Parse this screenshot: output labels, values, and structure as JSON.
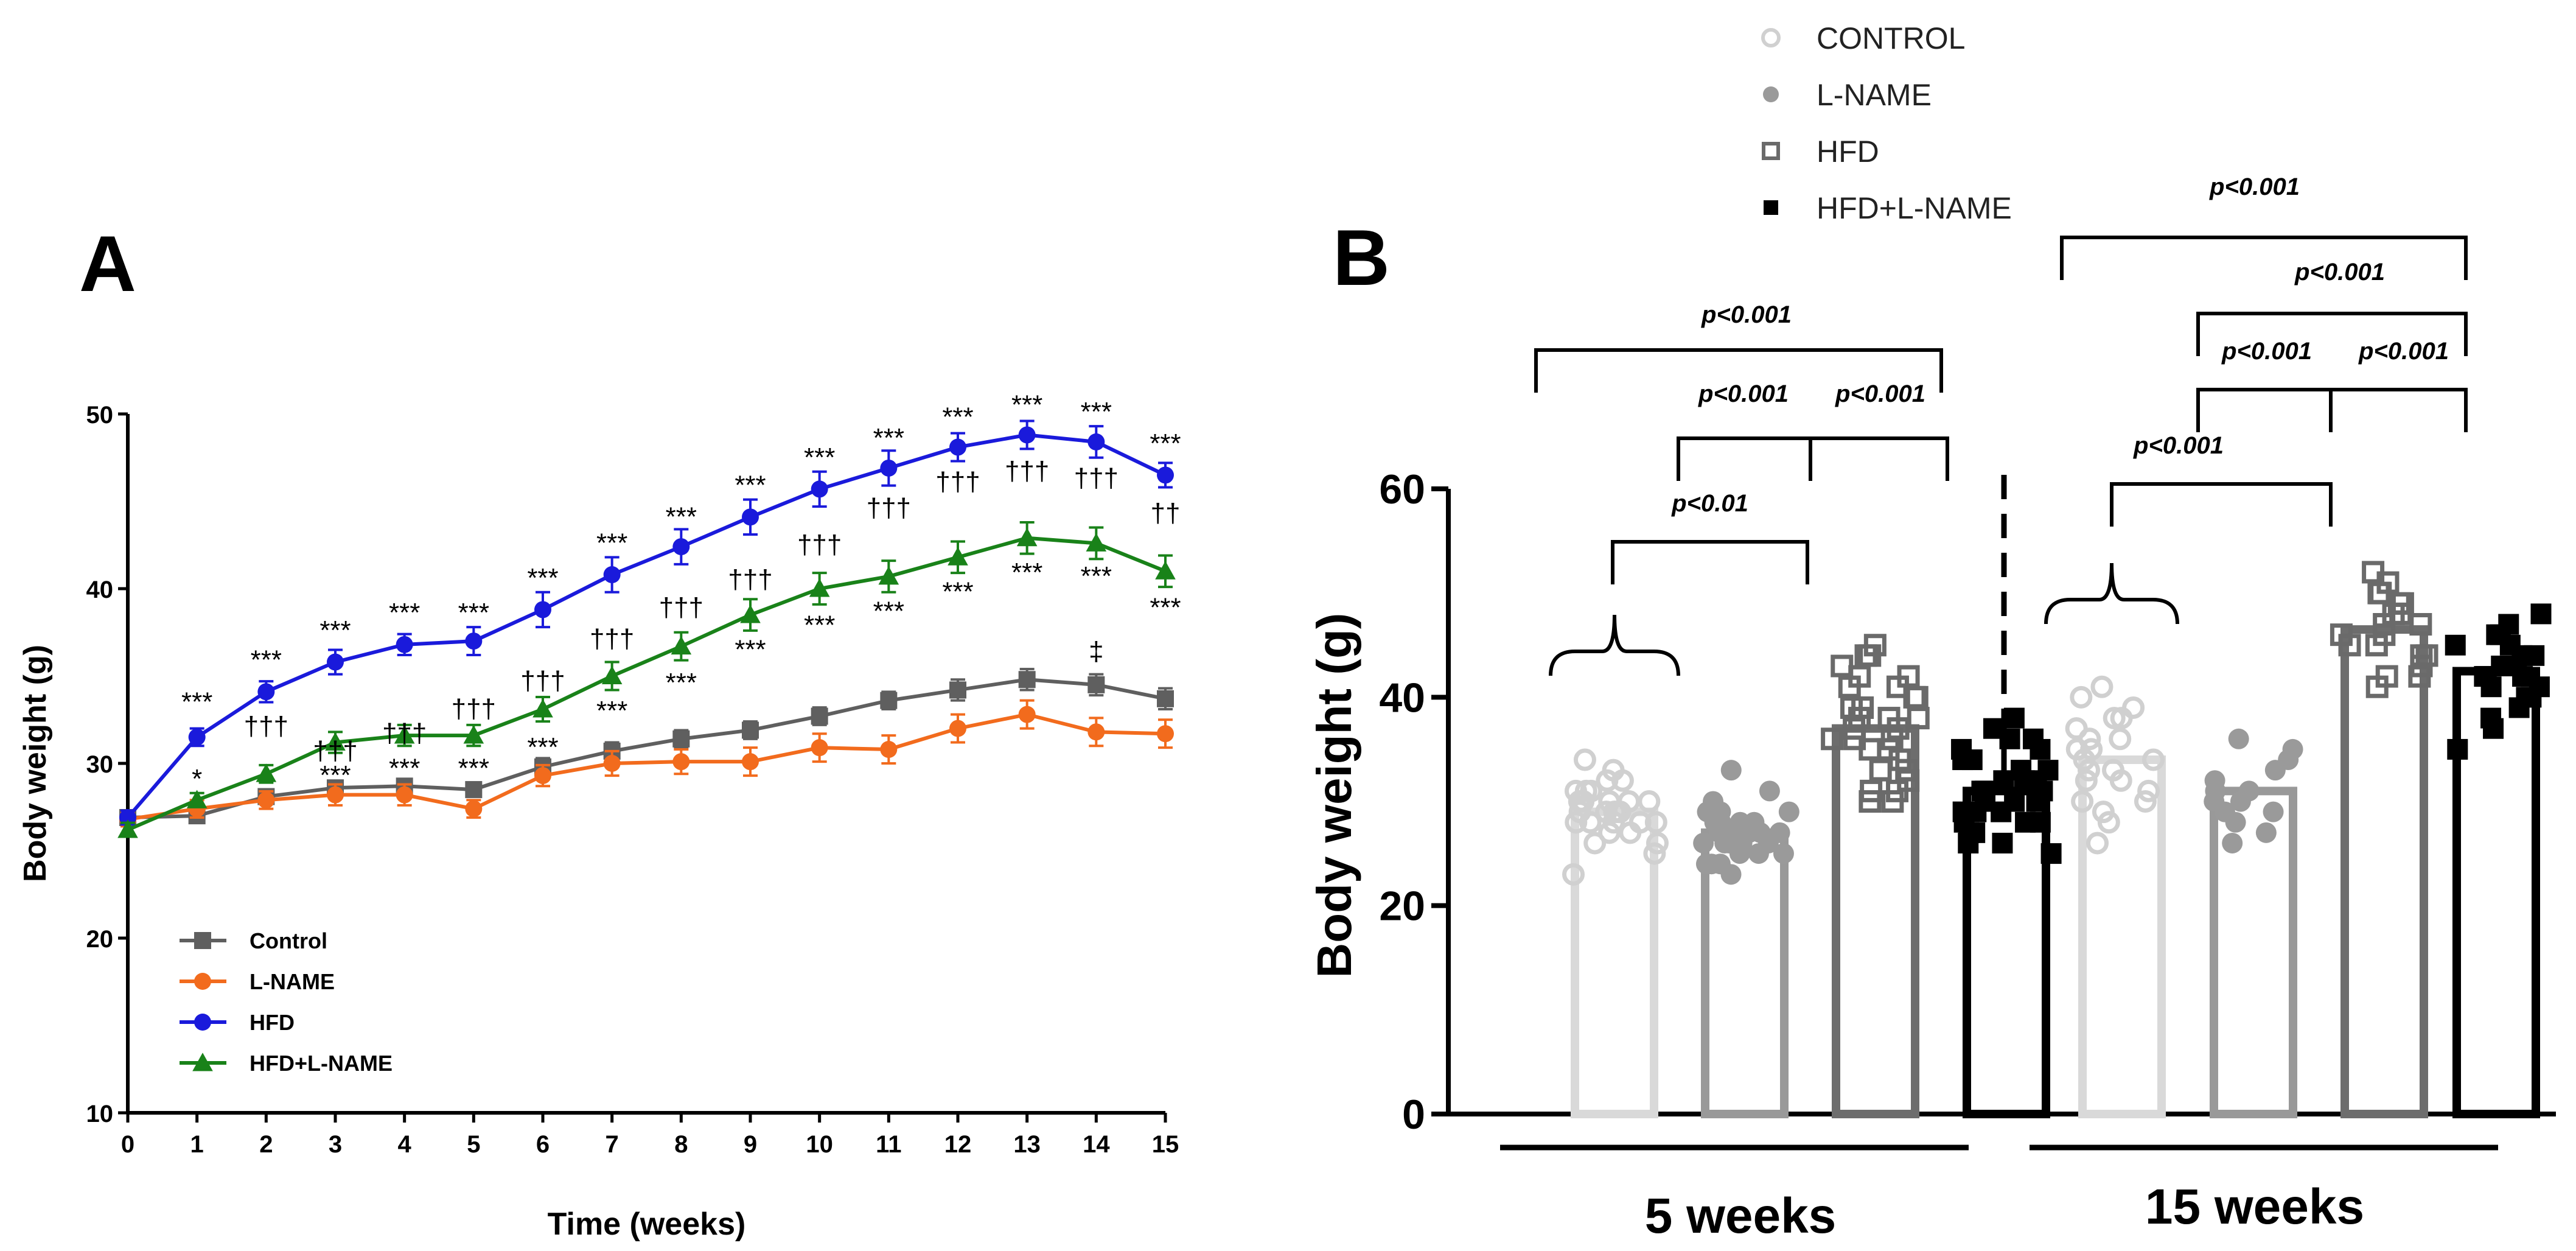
{
  "chart_data": [
    {
      "panel": "A",
      "type": "line",
      "xlabel": "Time (weeks)",
      "ylabel": "Body weight (g)",
      "xlim": [
        0,
        15
      ],
      "ylim": [
        10,
        50
      ],
      "x_ticks": [
        0,
        1,
        2,
        3,
        4,
        5,
        6,
        7,
        8,
        9,
        10,
        11,
        12,
        13,
        14,
        15
      ],
      "y_ticks": [
        10,
        20,
        30,
        40,
        50
      ],
      "legend_position": "bottom-left",
      "series": [
        {
          "name": "Control",
          "marker": "square",
          "color": "#5f5f5f",
          "values": [
            26.9,
            27.0,
            28.1,
            28.6,
            28.7,
            28.5,
            29.8,
            30.7,
            31.4,
            31.9,
            32.7,
            33.6,
            34.2,
            34.8,
            34.5,
            33.7
          ],
          "errors": [
            0.4,
            0.4,
            0.4,
            0.4,
            0.4,
            0.4,
            0.5,
            0.5,
            0.5,
            0.5,
            0.5,
            0.5,
            0.6,
            0.6,
            0.6,
            0.6
          ]
        },
        {
          "name": "L-NAME",
          "marker": "circle",
          "color": "#f26b1d",
          "values": [
            26.8,
            27.4,
            27.9,
            28.2,
            28.2,
            27.4,
            29.3,
            30.0,
            30.1,
            30.1,
            30.9,
            30.8,
            32.0,
            32.8,
            31.8,
            31.7
          ],
          "errors": [
            0.4,
            0.5,
            0.5,
            0.6,
            0.6,
            0.5,
            0.6,
            0.7,
            0.7,
            0.8,
            0.8,
            0.8,
            0.8,
            0.8,
            0.8,
            0.8
          ]
        },
        {
          "name": "HFD",
          "marker": "circle",
          "color": "#1a1adb",
          "values": [
            26.9,
            31.5,
            34.1,
            35.8,
            36.8,
            37.0,
            38.8,
            40.8,
            42.4,
            44.1,
            45.7,
            46.9,
            48.1,
            48.8,
            48.4,
            46.5
          ],
          "errors": [
            0.4,
            0.5,
            0.6,
            0.7,
            0.6,
            0.8,
            1.0,
            1.0,
            1.0,
            1.0,
            1.0,
            1.0,
            0.8,
            0.8,
            0.9,
            0.7
          ]
        },
        {
          "name": "HFD+L-NAME",
          "marker": "triangle",
          "color": "#198219",
          "values": [
            26.2,
            27.9,
            29.4,
            31.2,
            31.6,
            31.6,
            33.1,
            35.0,
            36.7,
            38.5,
            40.0,
            40.7,
            41.8,
            42.9,
            42.6,
            41.0
          ],
          "errors": [
            0.4,
            0.4,
            0.5,
            0.6,
            0.6,
            0.6,
            0.7,
            0.8,
            0.8,
            0.9,
            0.9,
            0.9,
            0.9,
            0.9,
            0.9,
            0.9
          ]
        }
      ],
      "annotations": [
        {
          "x": 1,
          "y": 33.5,
          "text": "***"
        },
        {
          "x": 2,
          "y": 35.9,
          "text": "***"
        },
        {
          "x": 3,
          "y": 37.6,
          "text": "***"
        },
        {
          "x": 4,
          "y": 38.6,
          "text": "***"
        },
        {
          "x": 5,
          "y": 38.6,
          "text": "***"
        },
        {
          "x": 6,
          "y": 40.6,
          "text": "***"
        },
        {
          "x": 7,
          "y": 42.6,
          "text": "***"
        },
        {
          "x": 8,
          "y": 44.1,
          "text": "***"
        },
        {
          "x": 9,
          "y": 45.9,
          "text": "***"
        },
        {
          "x": 10,
          "y": 47.5,
          "text": "***"
        },
        {
          "x": 11,
          "y": 48.6,
          "text": "***"
        },
        {
          "x": 12,
          "y": 49.8,
          "text": "***"
        },
        {
          "x": 13,
          "y": 50.5,
          "text": "***"
        },
        {
          "x": 14,
          "y": 50.1,
          "text": "***"
        },
        {
          "x": 15,
          "y": 48.3,
          "text": "***"
        },
        {
          "x": 1,
          "y": 29.1,
          "text": "*"
        },
        {
          "x": 2,
          "y": 32.1,
          "text": "†††"
        },
        {
          "x": 3,
          "y": 30.7,
          "text": "†††"
        },
        {
          "x": 3,
          "y": 29.3,
          "text": "***"
        },
        {
          "x": 4,
          "y": 31.7,
          "text": "†††"
        },
        {
          "x": 4,
          "y": 29.7,
          "text": "***"
        },
        {
          "x": 5,
          "y": 33.1,
          "text": "†††"
        },
        {
          "x": 5,
          "y": 29.7,
          "text": "***"
        },
        {
          "x": 6,
          "y": 34.7,
          "text": "†††"
        },
        {
          "x": 6,
          "y": 30.9,
          "text": "***"
        },
        {
          "x": 7,
          "y": 37.1,
          "text": "†††"
        },
        {
          "x": 7,
          "y": 33.0,
          "text": "***"
        },
        {
          "x": 8,
          "y": 38.9,
          "text": "†††"
        },
        {
          "x": 8,
          "y": 34.6,
          "text": "***"
        },
        {
          "x": 9,
          "y": 40.5,
          "text": "†††"
        },
        {
          "x": 9,
          "y": 36.5,
          "text": "***"
        },
        {
          "x": 10,
          "y": 42.5,
          "text": "†††"
        },
        {
          "x": 10,
          "y": 37.9,
          "text": "***"
        },
        {
          "x": 11,
          "y": 44.6,
          "text": "†††"
        },
        {
          "x": 11,
          "y": 38.7,
          "text": "***"
        },
        {
          "x": 12,
          "y": 46.1,
          "text": "†††"
        },
        {
          "x": 12,
          "y": 39.8,
          "text": "***"
        },
        {
          "x": 13,
          "y": 46.7,
          "text": "†††"
        },
        {
          "x": 13,
          "y": 40.9,
          "text": "***"
        },
        {
          "x": 14,
          "y": 46.3,
          "text": "†††"
        },
        {
          "x": 14,
          "y": 40.7,
          "text": "***"
        },
        {
          "x": 14,
          "y": 36.4,
          "text": "‡"
        },
        {
          "x": 15,
          "y": 44.3,
          "text": "††"
        },
        {
          "x": 15,
          "y": 38.9,
          "text": "***"
        }
      ]
    },
    {
      "panel": "B",
      "type": "bar",
      "ylabel": "Body weight (g)",
      "ylim": [
        0,
        60
      ],
      "y_ticks": [
        0,
        20,
        40,
        60
      ],
      "legend_position": "top",
      "legend": [
        "CONTROL",
        "L-NAME",
        "HFD",
        "HFD+L-NAME"
      ],
      "groups": [
        {
          "label": "5 weeks",
          "bars": [
            {
              "series": "CONTROL",
              "mean": 29.0,
              "points": [
                28,
                29,
                30,
                31,
                27,
                29,
                28,
                30,
                32,
                29,
                26,
                28,
                30,
                31,
                29,
                28,
                27,
                30,
                29,
                33,
                34,
                23,
                25,
                26,
                29,
                30,
                28,
                31,
                32,
                29
              ]
            },
            {
              "series": "L-NAME",
              "mean": 27.0,
              "points": [
                27,
                26,
                28,
                29,
                25,
                24,
                27,
                26,
                30,
                31,
                33,
                23,
                24,
                25,
                28,
                27,
                26,
                29,
                28,
                27,
                26,
                25,
                24,
                27,
                28,
                29,
                26,
                27
              ]
            },
            {
              "series": "HFD",
              "mean": 37.0,
              "points": [
                36,
                38,
                40,
                42,
                44,
                45,
                35,
                33,
                31,
                30,
                37,
                39,
                41,
                43,
                36,
                34,
                32,
                38,
                40,
                42,
                37,
                35,
                33,
                36,
                38,
                39,
                41,
                44,
                30,
                31
              ]
            },
            {
              "series": "HFD+L-NAME",
              "mean": 31.0,
              "points": [
                31,
                33,
                35,
                37,
                38,
                29,
                27,
                25,
                26,
                28,
                30,
                32,
                34,
                36,
                31,
                30,
                29,
                27,
                28,
                32,
                33,
                35,
                31,
                30,
                29,
                28,
                26,
                34,
                36,
                32
              ]
            }
          ]
        },
        {
          "label": "15 weeks",
          "bars": [
            {
              "series": "CONTROL",
              "mean": 34.0,
              "points": [
                34,
                36,
                38,
                40,
                41,
                32,
                30,
                28,
                26,
                29,
                31,
                33,
                35,
                37,
                39,
                34,
                33,
                32,
                36,
                38,
                35,
                30
              ]
            },
            {
              "series": "L-NAME",
              "mean": 31.0,
              "points": [
                31,
                33,
                36,
                35,
                29,
                27,
                26,
                30,
                32,
                34,
                31,
                30,
                29,
                28
              ]
            },
            {
              "series": "HFD",
              "mean": 46.5,
              "points": [
                46,
                48,
                50,
                52,
                51,
                44,
                42,
                41,
                45,
                47,
                49,
                46,
                43,
                48,
                50,
                44,
                42,
                45,
                47,
                49
              ]
            },
            {
              "series": "HFD+L-NAME",
              "mean": 42.5,
              "points": [
                42,
                44,
                46,
                48,
                47,
                40,
                38,
                35,
                41,
                43,
                45,
                42,
                39,
                44,
                46,
                41,
                40,
                43,
                45,
                42,
                37
              ]
            }
          ]
        }
      ],
      "brackets": [
        {
          "text": "p<0.01"
        },
        {
          "text": "p<0.001"
        },
        {
          "text": "p<0.001"
        },
        {
          "text": "p<0.001"
        },
        {
          "text": "p<0.001"
        },
        {
          "text": "p<0.001"
        },
        {
          "text": "p<0.001"
        },
        {
          "text": "p<0.001"
        },
        {
          "text": "p<0.001"
        }
      ]
    }
  ],
  "panel_labels": {
    "a": "A",
    "b": "B"
  }
}
